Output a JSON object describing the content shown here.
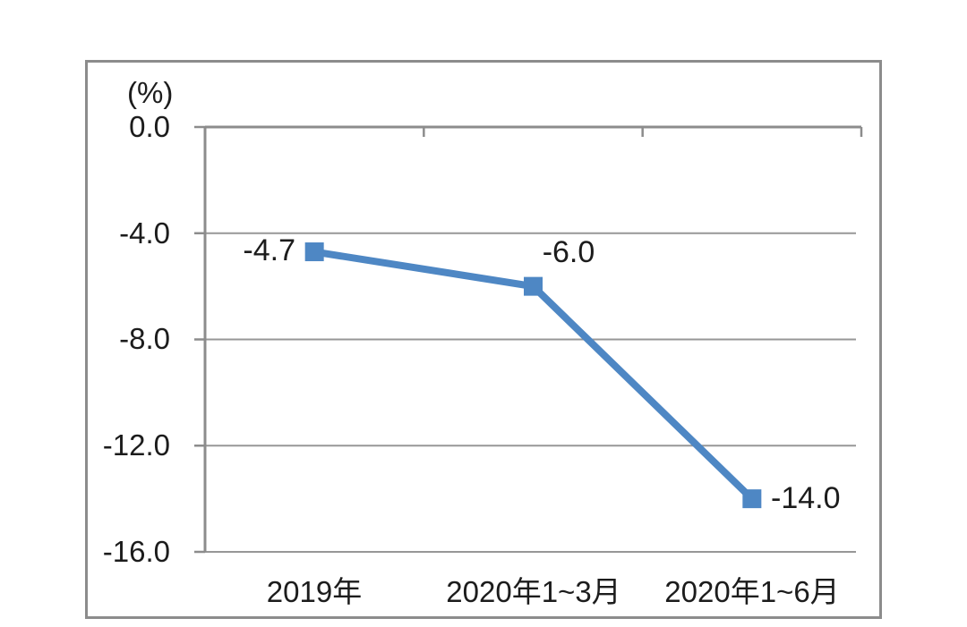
{
  "chart": {
    "unit_label": "(%)"
  },
  "chart_data": {
    "type": "line",
    "title": "",
    "categories": [
      "2019年",
      "2020年1~3月",
      "2020年1~6月"
    ],
    "values": [
      -4.7,
      -6.0,
      -14.0
    ],
    "data_labels": [
      "-4.7",
      "-6.0",
      "-14.0"
    ],
    "ylabel": "(%)",
    "ylim": [
      -16,
      0
    ],
    "yticks": [
      0,
      -4,
      -8,
      -12,
      -16
    ],
    "ytick_labels": [
      "0.0",
      "-4.0",
      "-8.0",
      "-12.0",
      "-16.0"
    ],
    "grid": true,
    "legend": false,
    "marker": "square",
    "line_color": "#4e87c4",
    "grid_color": "#979797",
    "axis_color": "#8c8c8c",
    "frame_color": "#8c8c8c",
    "text_color": "#1c1c1c",
    "line_width": 8
  }
}
